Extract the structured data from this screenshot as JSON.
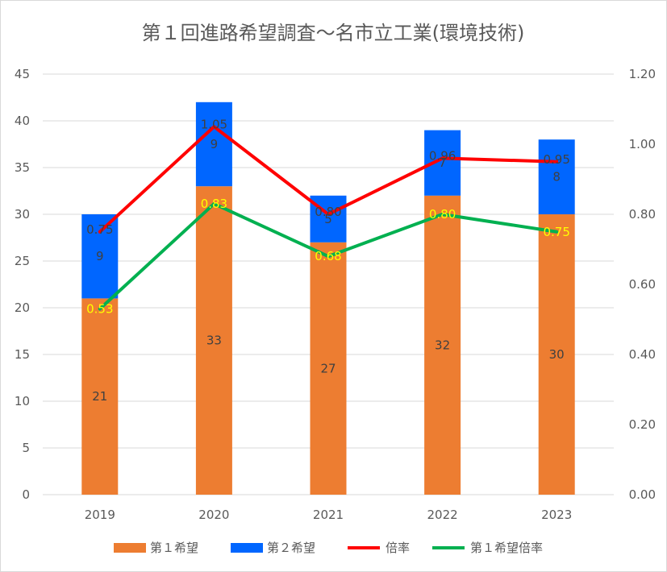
{
  "chart_data": {
    "type": "bar",
    "title": "第１回進路希望調査～名市立工業(環境技術)",
    "categories": [
      "2019",
      "2020",
      "2021",
      "2022",
      "2023"
    ],
    "series": [
      {
        "name": "第１希望",
        "kind": "bar",
        "axis": "left",
        "color": "#ed7d31",
        "values": [
          21,
          33,
          27,
          32,
          30
        ]
      },
      {
        "name": "第２希望",
        "kind": "bar",
        "axis": "left",
        "color": "#0066ff",
        "values": [
          9,
          9,
          5,
          7,
          8
        ]
      },
      {
        "name": "倍率",
        "kind": "line",
        "axis": "right",
        "color": "#ff0000",
        "values": [
          0.75,
          1.05,
          0.8,
          0.96,
          0.95
        ]
      },
      {
        "name": "第１希望倍率",
        "kind": "line",
        "axis": "right",
        "color": "#00b050",
        "values": [
          0.53,
          0.83,
          0.68,
          0.8,
          0.75
        ]
      }
    ],
    "left_axis": {
      "min": 0,
      "max": 45,
      "step": 5,
      "ticks": [
        "0",
        "5",
        "10",
        "15",
        "20",
        "25",
        "30",
        "35",
        "40",
        "45"
      ]
    },
    "right_axis": {
      "min": 0,
      "max": 1.2,
      "step": 0.2,
      "ticks": [
        "0.00",
        "0.20",
        "0.40",
        "0.60",
        "0.80",
        "1.00",
        "1.20"
      ]
    },
    "bar_labels": {
      "第１希望": [
        "21",
        "33",
        "27",
        "32",
        "30"
      ],
      "第２希望": [
        "9",
        "9",
        "5",
        "7",
        "8"
      ]
    },
    "line_labels": {
      "倍率": [
        "0.75",
        "1.05",
        "0.80",
        "0.96",
        "0.95"
      ],
      "第１希望倍率": [
        "0.53",
        "0.83",
        "0.68",
        "0.80",
        "0.75"
      ]
    },
    "stacked": true,
    "grid": true,
    "legend_position": "bottom"
  }
}
